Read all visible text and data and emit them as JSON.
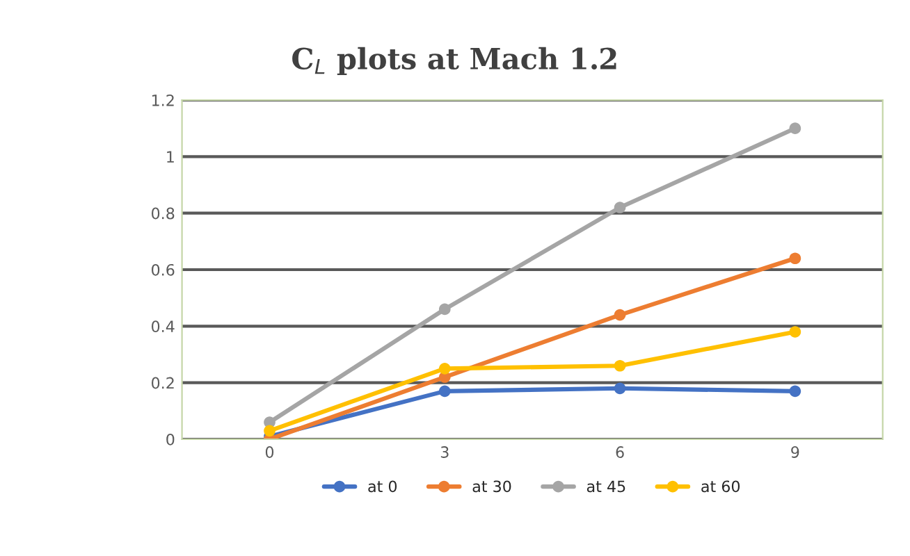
{
  "chart_data": {
    "type": "line",
    "title": "C$_{L}$ plots at Mach 1.2",
    "categories": [
      "0",
      "3",
      "6",
      "9"
    ],
    "series": [
      {
        "name": "at 0",
        "color": "#4472c4",
        "values": [
          0.01,
          0.17,
          0.18,
          0.17
        ]
      },
      {
        "name": "at 30",
        "color": "#ed7d31",
        "values": [
          0.0,
          0.22,
          0.44,
          0.64
        ]
      },
      {
        "name": "at 45",
        "color": "#a5a5a5",
        "values": [
          0.06,
          0.46,
          0.82,
          1.1
        ]
      },
      {
        "name": "at 60",
        "color": "#ffc000",
        "values": [
          0.03,
          0.25,
          0.26,
          0.38
        ]
      }
    ],
    "ylim": [
      0,
      1.2
    ],
    "yticks": [
      0,
      0.2,
      0.4,
      0.6,
      0.8,
      1,
      1.2
    ],
    "grid": "y",
    "legend": "bottom",
    "marker": "circle",
    "line_style": "solid"
  }
}
